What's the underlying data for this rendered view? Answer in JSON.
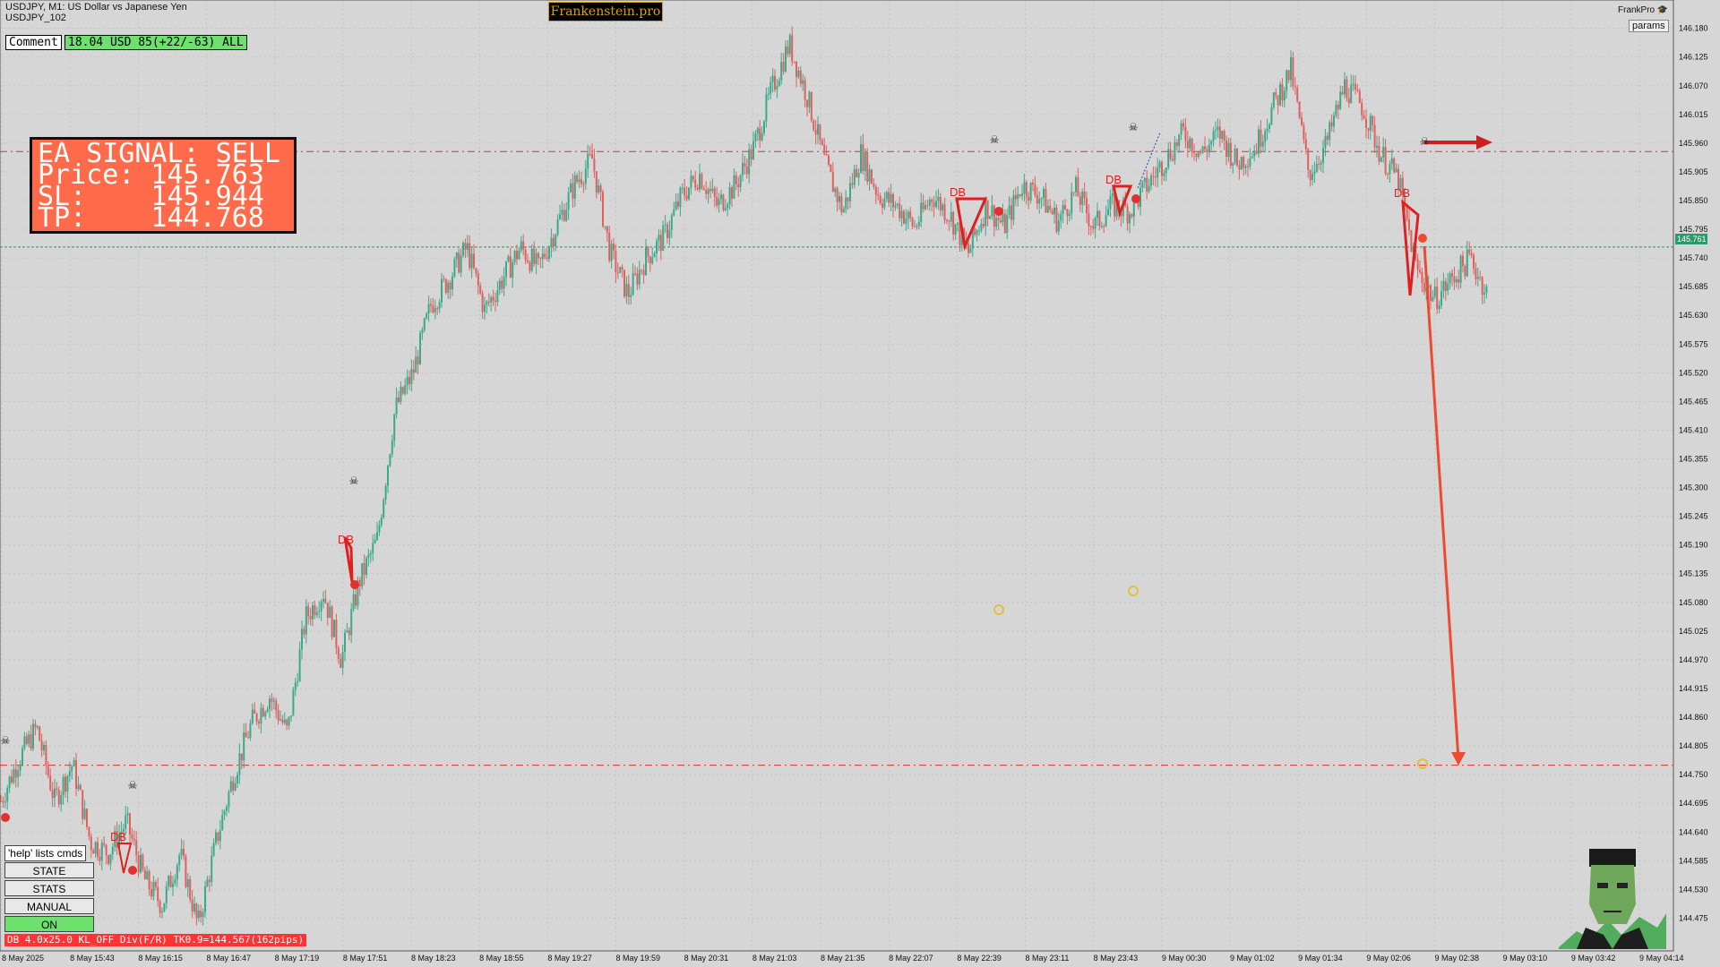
{
  "header": {
    "symbol_line": "USDJPY, M1:  US Dollar vs Japanese Yen",
    "account_line": "USDJPY_102",
    "brand": "Frankenstein.pro",
    "frankpro": "FrankPro",
    "params_label": "params"
  },
  "comment": {
    "label": "Comment",
    "value": "18.04 USD 85(+22/-63) ALL"
  },
  "signal": {
    "title": "EA SIGNAL: SELL",
    "price": "Price: 145.763",
    "sl": "SL:    145.944",
    "tp": "TP:    144.768"
  },
  "panel": {
    "help": "'help' lists cmds",
    "state": "STATE",
    "stats": "STATS",
    "manual": "MANUAL",
    "on": "ON"
  },
  "status_line": "DB 4.0x25.0 KL_OFF Div(F/R) TK0.9=144.567(162pips)",
  "price_axis": [
    "146.180",
    "146.125",
    "146.070",
    "146.015",
    "145.960",
    "145.905",
    "145.850",
    "145.795",
    "145.740",
    "145.685",
    "145.630",
    "145.575",
    "145.520",
    "145.465",
    "145.410",
    "145.355",
    "145.300",
    "145.245",
    "145.190",
    "145.135",
    "145.080",
    "145.025",
    "144.970",
    "144.915",
    "144.860",
    "144.805",
    "144.750",
    "144.695",
    "144.640",
    "144.585",
    "144.530",
    "144.475"
  ],
  "current_price_tag": "145.761",
  "time_axis": [
    "8 May 2025",
    "8 May 15:43",
    "8 May 16:15",
    "8 May 16:47",
    "8 May 17:19",
    "8 May 17:51",
    "8 May 18:23",
    "8 May 18:55",
    "8 May 19:27",
    "8 May 19:59",
    "8 May 20:31",
    "8 May 21:03",
    "8 May 21:35",
    "8 May 22:07",
    "8 May 22:39",
    "8 May 23:11",
    "8 May 23:43",
    "9 May 00:30",
    "9 May 01:02",
    "9 May 01:34",
    "9 May 02:06",
    "9 May 02:38",
    "9 May 03:10",
    "9 May 03:42",
    "9 May 04:14"
  ],
  "db_labels": [
    "DB",
    "DB",
    "DB",
    "DB",
    "DB"
  ],
  "levels": {
    "sell_signal": 145.944,
    "current": 145.761,
    "take_profit": 144.768
  },
  "colors": {
    "background": "#d6d6d6",
    "bull": "#3aaa8a",
    "bear": "#e06060",
    "level_red": "#e03030",
    "level_green": "#2a9a6a",
    "signal_box": "#ff6a4a"
  },
  "price_path": [
    [
      0,
      144.7
    ],
    [
      20,
      144.78
    ],
    [
      40,
      144.84
    ],
    [
      60,
      144.7
    ],
    [
      80,
      144.77
    ],
    [
      100,
      144.62
    ],
    [
      120,
      144.6
    ],
    [
      140,
      144.66
    ],
    [
      160,
      144.55
    ],
    [
      180,
      144.5
    ],
    [
      200,
      144.6
    ],
    [
      220,
      144.46
    ],
    [
      240,
      144.62
    ],
    [
      260,
      144.75
    ],
    [
      280,
      144.85
    ],
    [
      300,
      144.9
    ],
    [
      320,
      144.83
    ],
    [
      340,
      145.05
    ],
    [
      360,
      145.1
    ],
    [
      380,
      144.97
    ],
    [
      400,
      145.12
    ],
    [
      420,
      145.2
    ],
    [
      440,
      145.45
    ],
    [
      460,
      145.52
    ],
    [
      480,
      145.65
    ],
    [
      500,
      145.7
    ],
    [
      520,
      145.76
    ],
    [
      540,
      145.64
    ],
    [
      560,
      145.7
    ],
    [
      580,
      145.76
    ],
    [
      600,
      145.72
    ],
    [
      620,
      145.8
    ],
    [
      640,
      145.88
    ],
    [
      660,
      145.93
    ],
    [
      680,
      145.75
    ],
    [
      700,
      145.67
    ],
    [
      720,
      145.74
    ],
    [
      740,
      145.78
    ],
    [
      760,
      145.86
    ],
    [
      780,
      145.9
    ],
    [
      800,
      145.84
    ],
    [
      820,
      145.88
    ],
    [
      840,
      145.95
    ],
    [
      860,
      146.06
    ],
    [
      880,
      146.15
    ],
    [
      900,
      146.05
    ],
    [
      920,
      145.92
    ],
    [
      940,
      145.83
    ],
    [
      960,
      145.94
    ],
    [
      980,
      145.86
    ],
    [
      1000,
      145.84
    ],
    [
      1020,
      145.8
    ],
    [
      1040,
      145.86
    ],
    [
      1060,
      145.82
    ],
    [
      1080,
      145.75
    ],
    [
      1100,
      145.84
    ],
    [
      1120,
      145.8
    ],
    [
      1140,
      145.88
    ],
    [
      1160,
      145.86
    ],
    [
      1180,
      145.81
    ],
    [
      1200,
      145.87
    ],
    [
      1220,
      145.8
    ],
    [
      1240,
      145.84
    ],
    [
      1260,
      145.83
    ],
    [
      1280,
      145.88
    ],
    [
      1300,
      145.93
    ],
    [
      1320,
      145.98
    ],
    [
      1340,
      145.94
    ],
    [
      1360,
      145.98
    ],
    [
      1380,
      145.92
    ],
    [
      1400,
      145.95
    ],
    [
      1420,
      146.03
    ],
    [
      1440,
      146.1
    ],
    [
      1460,
      145.9
    ],
    [
      1480,
      145.96
    ],
    [
      1500,
      146.07
    ],
    [
      1520,
      146.03
    ],
    [
      1540,
      145.94
    ],
    [
      1560,
      145.89
    ],
    [
      1580,
      145.72
    ],
    [
      1600,
      145.66
    ],
    [
      1620,
      145.7
    ],
    [
      1640,
      145.74
    ],
    [
      1660,
      145.67
    ]
  ]
}
